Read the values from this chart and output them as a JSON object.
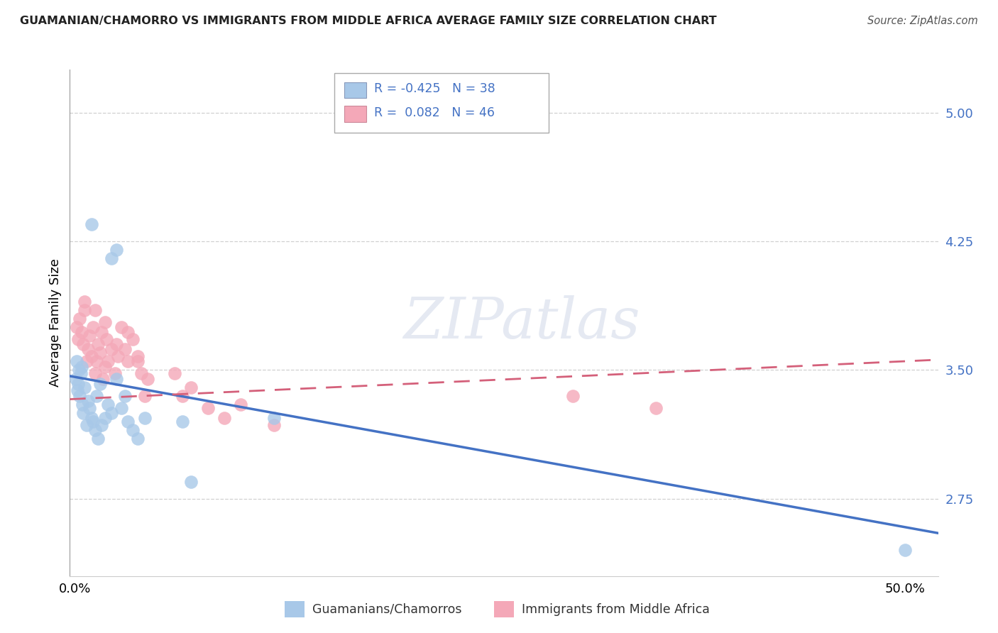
{
  "title": "GUAMANIAN/CHAMORRO VS IMMIGRANTS FROM MIDDLE AFRICA AVERAGE FAMILY SIZE CORRELATION CHART",
  "source": "Source: ZipAtlas.com",
  "ylabel": "Average Family Size",
  "legend_label_blue": "Guamanians/Chamorros",
  "legend_label_pink": "Immigrants from Middle Africa",
  "yticks": [
    2.75,
    3.5,
    4.25,
    5.0
  ],
  "ylim": [
    2.3,
    5.25
  ],
  "xlim": [
    -0.003,
    0.52
  ],
  "xticks": [
    0.0,
    0.5
  ],
  "xticklabels": [
    "0.0%",
    "50.0%"
  ],
  "watermark": "ZIPatlas",
  "blue_color": "#a8c8e8",
  "pink_color": "#f4a8b8",
  "blue_line_color": "#4472c4",
  "pink_line_color": "#d4607a",
  "blue_dots": [
    [
      0.0005,
      3.45
    ],
    [
      0.001,
      3.55
    ],
    [
      0.0015,
      3.38
    ],
    [
      0.002,
      3.42
    ],
    [
      0.0025,
      3.5
    ],
    [
      0.003,
      3.35
    ],
    [
      0.0035,
      3.48
    ],
    [
      0.004,
      3.52
    ],
    [
      0.0045,
      3.3
    ],
    [
      0.005,
      3.25
    ],
    [
      0.006,
      3.4
    ],
    [
      0.007,
      3.18
    ],
    [
      0.008,
      3.32
    ],
    [
      0.009,
      3.28
    ],
    [
      0.01,
      3.22
    ],
    [
      0.011,
      3.2
    ],
    [
      0.012,
      3.15
    ],
    [
      0.013,
      3.35
    ],
    [
      0.014,
      3.1
    ],
    [
      0.015,
      3.42
    ],
    [
      0.016,
      3.18
    ],
    [
      0.018,
      3.22
    ],
    [
      0.02,
      3.3
    ],
    [
      0.022,
      3.25
    ],
    [
      0.025,
      3.45
    ],
    [
      0.028,
      3.28
    ],
    [
      0.03,
      3.35
    ],
    [
      0.032,
      3.2
    ],
    [
      0.035,
      3.15
    ],
    [
      0.038,
      3.1
    ],
    [
      0.042,
      3.22
    ],
    [
      0.01,
      4.35
    ],
    [
      0.022,
      4.15
    ],
    [
      0.025,
      4.2
    ],
    [
      0.065,
      3.2
    ],
    [
      0.07,
      2.85
    ],
    [
      0.12,
      3.22
    ],
    [
      0.5,
      2.45
    ]
  ],
  "pink_dots": [
    [
      0.001,
      3.75
    ],
    [
      0.002,
      3.68
    ],
    [
      0.003,
      3.8
    ],
    [
      0.004,
      3.72
    ],
    [
      0.005,
      3.65
    ],
    [
      0.006,
      3.85
    ],
    [
      0.007,
      3.55
    ],
    [
      0.008,
      3.62
    ],
    [
      0.009,
      3.7
    ],
    [
      0.01,
      3.58
    ],
    [
      0.011,
      3.75
    ],
    [
      0.012,
      3.48
    ],
    [
      0.013,
      3.55
    ],
    [
      0.014,
      3.65
    ],
    [
      0.015,
      3.6
    ],
    [
      0.016,
      3.72
    ],
    [
      0.017,
      3.45
    ],
    [
      0.018,
      3.52
    ],
    [
      0.019,
      3.68
    ],
    [
      0.02,
      3.55
    ],
    [
      0.022,
      3.62
    ],
    [
      0.024,
      3.48
    ],
    [
      0.026,
      3.58
    ],
    [
      0.028,
      3.75
    ],
    [
      0.03,
      3.62
    ],
    [
      0.032,
      3.55
    ],
    [
      0.035,
      3.68
    ],
    [
      0.038,
      3.55
    ],
    [
      0.04,
      3.48
    ],
    [
      0.042,
      3.35
    ],
    [
      0.044,
      3.45
    ],
    [
      0.006,
      3.9
    ],
    [
      0.012,
      3.85
    ],
    [
      0.018,
      3.78
    ],
    [
      0.025,
      3.65
    ],
    [
      0.032,
      3.72
    ],
    [
      0.038,
      3.58
    ],
    [
      0.06,
      3.48
    ],
    [
      0.065,
      3.35
    ],
    [
      0.07,
      3.4
    ],
    [
      0.08,
      3.28
    ],
    [
      0.09,
      3.22
    ],
    [
      0.1,
      3.3
    ],
    [
      0.12,
      3.18
    ],
    [
      0.3,
      3.35
    ],
    [
      0.35,
      3.28
    ]
  ],
  "blue_regline": [
    [
      -0.003,
      3.465
    ],
    [
      0.52,
      2.55
    ]
  ],
  "pink_regline": [
    [
      -0.003,
      3.33
    ],
    [
      0.52,
      3.56
    ]
  ],
  "background_color": "#ffffff",
  "grid_color": "#d0d0d0"
}
